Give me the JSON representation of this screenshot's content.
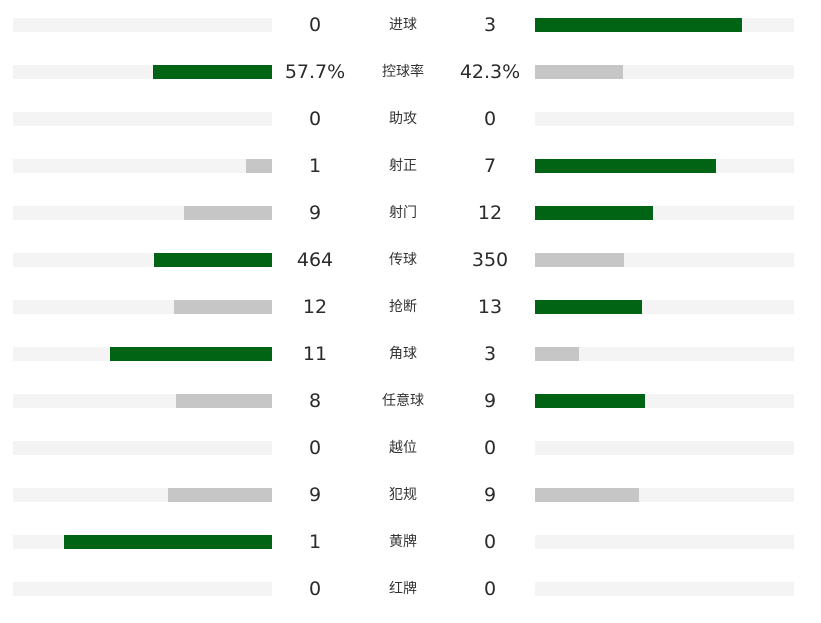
{
  "colors": {
    "winner_bar": "#006414",
    "loser_bar": "#c6c6c6",
    "track": "#f4f4f4"
  },
  "stats": [
    {
      "label": "进球",
      "home": "0",
      "away": "3",
      "home_ratio": 0.0,
      "away_ratio": 0.8
    },
    {
      "label": "控球率",
      "home": "57.7%",
      "away": "42.3%",
      "home_ratio": 0.46,
      "away_ratio": 0.34
    },
    {
      "label": "助攻",
      "home": "0",
      "away": "0",
      "home_ratio": 0.0,
      "away_ratio": 0.0
    },
    {
      "label": "射正",
      "home": "1",
      "away": "7",
      "home_ratio": 0.1,
      "away_ratio": 0.7
    },
    {
      "label": "射门",
      "home": "9",
      "away": "12",
      "home_ratio": 0.34,
      "away_ratio": 0.455
    },
    {
      "label": "传球",
      "home": "464",
      "away": "350",
      "home_ratio": 0.455,
      "away_ratio": 0.345
    },
    {
      "label": "抢断",
      "home": "12",
      "away": "13",
      "home_ratio": 0.38,
      "away_ratio": 0.415
    },
    {
      "label": "角球",
      "home": "11",
      "away": "3",
      "home_ratio": 0.625,
      "away_ratio": 0.17
    },
    {
      "label": "任意球",
      "home": "8",
      "away": "9",
      "home_ratio": 0.37,
      "away_ratio": 0.425
    },
    {
      "label": "越位",
      "home": "0",
      "away": "0",
      "home_ratio": 0.0,
      "away_ratio": 0.0
    },
    {
      "label": "犯规",
      "home": "9",
      "away": "9",
      "home_ratio": 0.4,
      "away_ratio": 0.4
    },
    {
      "label": "黄牌",
      "home": "1",
      "away": "0",
      "home_ratio": 0.805,
      "away_ratio": 0.0
    },
    {
      "label": "红牌",
      "home": "0",
      "away": "0",
      "home_ratio": 0.0,
      "away_ratio": 0.0
    }
  ]
}
